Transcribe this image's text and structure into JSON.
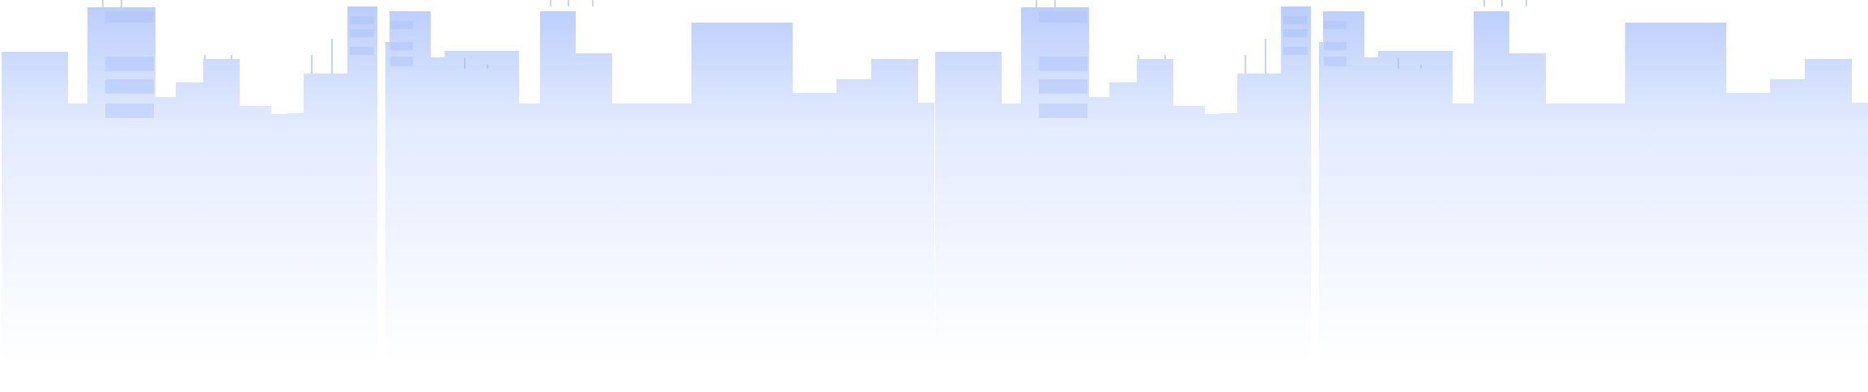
{
  "scene": {
    "kind": "city-skyline-silhouette",
    "repeat_count": 2,
    "colors": {
      "top": "#b9ccfb",
      "mid": "#e3ebff",
      "bottom": "#ffffff",
      "window": "#a9c0f8",
      "antenna": "#9fb6ef"
    }
  }
}
